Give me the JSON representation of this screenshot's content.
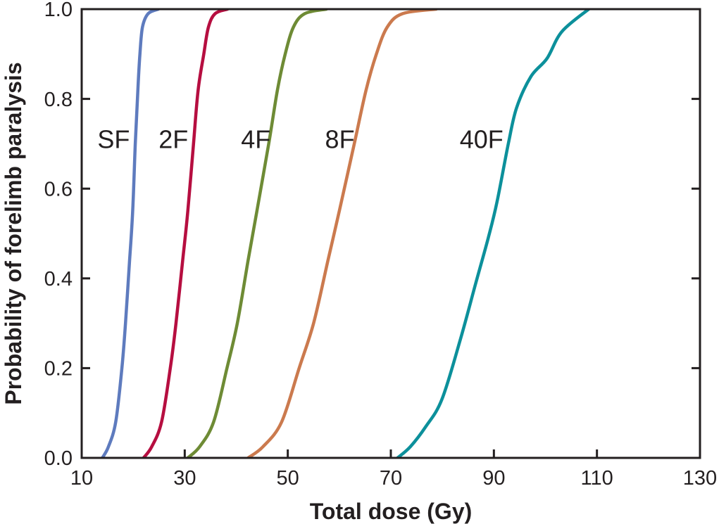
{
  "chart_data": {
    "type": "line",
    "title": "",
    "xlabel": "Total dose (Gy)",
    "ylabel": "Probability of forelimb paralysis",
    "xlim": [
      10,
      130
    ],
    "ylim": [
      0.0,
      1.0
    ],
    "grid": false,
    "legend_position": "none",
    "xticks": [
      10,
      30,
      50,
      70,
      90,
      110,
      130
    ],
    "xtick_labels": [
      "10",
      "30",
      "50",
      "70",
      "90",
      "110",
      "130"
    ],
    "yticks": [
      0.0,
      0.2,
      0.4,
      0.6,
      0.8,
      1.0
    ],
    "ytick_labels": [
      "0.0",
      "0.2",
      "0.4",
      "0.6",
      "0.8",
      "1.0"
    ],
    "axis_color": "#231f20",
    "text_color": "#231f20",
    "background_color": "#ffffff",
    "series": [
      {
        "name": "SF",
        "color": "#5e7bbe",
        "label": "SF",
        "label_x": 16.2,
        "label_y": 0.71,
        "points": [
          [
            14.0,
            0.0
          ],
          [
            15.2,
            0.025
          ],
          [
            16.6,
            0.08
          ],
          [
            17.8,
            0.2
          ],
          [
            18.5,
            0.3
          ],
          [
            19.3,
            0.44
          ],
          [
            19.9,
            0.55
          ],
          [
            20.4,
            0.7
          ],
          [
            20.9,
            0.82
          ],
          [
            21.3,
            0.9
          ],
          [
            21.8,
            0.96
          ],
          [
            22.9,
            0.99
          ],
          [
            24.9,
            1.0
          ]
        ]
      },
      {
        "name": "2F",
        "color": "#b60e40",
        "label": "2F",
        "label_x": 27.8,
        "label_y": 0.71,
        "points": [
          [
            22.0,
            0.0
          ],
          [
            23.6,
            0.025
          ],
          [
            25.5,
            0.08
          ],
          [
            27.2,
            0.2
          ],
          [
            28.3,
            0.3
          ],
          [
            29.6,
            0.44
          ],
          [
            30.6,
            0.55
          ],
          [
            31.7,
            0.7
          ],
          [
            32.6,
            0.82
          ],
          [
            33.7,
            0.9
          ],
          [
            34.6,
            0.96
          ],
          [
            35.9,
            0.99
          ],
          [
            38.3,
            1.0
          ]
        ]
      },
      {
        "name": "4F",
        "color": "#6e8b35",
        "label": "4F",
        "label_x": 43.8,
        "label_y": 0.71,
        "points": [
          [
            30.6,
            0.0
          ],
          [
            32.9,
            0.025
          ],
          [
            35.6,
            0.08
          ],
          [
            38.2,
            0.2
          ],
          [
            40.2,
            0.3
          ],
          [
            42.3,
            0.44
          ],
          [
            44.0,
            0.55
          ],
          [
            46.3,
            0.7
          ],
          [
            48.0,
            0.82
          ],
          [
            49.5,
            0.9
          ],
          [
            51.1,
            0.96
          ],
          [
            53.3,
            0.99
          ],
          [
            57.5,
            1.0
          ]
        ]
      },
      {
        "name": "8F",
        "color": "#cb7a4e",
        "label": "8F",
        "label_x": 60.1,
        "label_y": 0.71,
        "points": [
          [
            42.3,
            0.0
          ],
          [
            45.2,
            0.025
          ],
          [
            48.8,
            0.08
          ],
          [
            52.2,
            0.2
          ],
          [
            55.0,
            0.3
          ],
          [
            57.8,
            0.44
          ],
          [
            60.0,
            0.55
          ],
          [
            62.9,
            0.7
          ],
          [
            65.2,
            0.82
          ],
          [
            67.2,
            0.9
          ],
          [
            69.3,
            0.96
          ],
          [
            72.3,
            0.99
          ],
          [
            78.8,
            1.0
          ]
        ]
      },
      {
        "name": "40F",
        "color": "#0c909b",
        "label": "40F",
        "label_x": 87.6,
        "label_y": 0.71,
        "points": [
          [
            71.3,
            0.0
          ],
          [
            73.8,
            0.025
          ],
          [
            76.8,
            0.07
          ],
          [
            79.9,
            0.13
          ],
          [
            83.4,
            0.26
          ],
          [
            86.5,
            0.39
          ],
          [
            88.9,
            0.49
          ],
          [
            90.6,
            0.57
          ],
          [
            92.8,
            0.7
          ],
          [
            94.4,
            0.78
          ],
          [
            97.2,
            0.85
          ],
          [
            100.3,
            0.89
          ],
          [
            103.2,
            0.95
          ],
          [
            108.4,
            1.0
          ]
        ]
      }
    ]
  }
}
